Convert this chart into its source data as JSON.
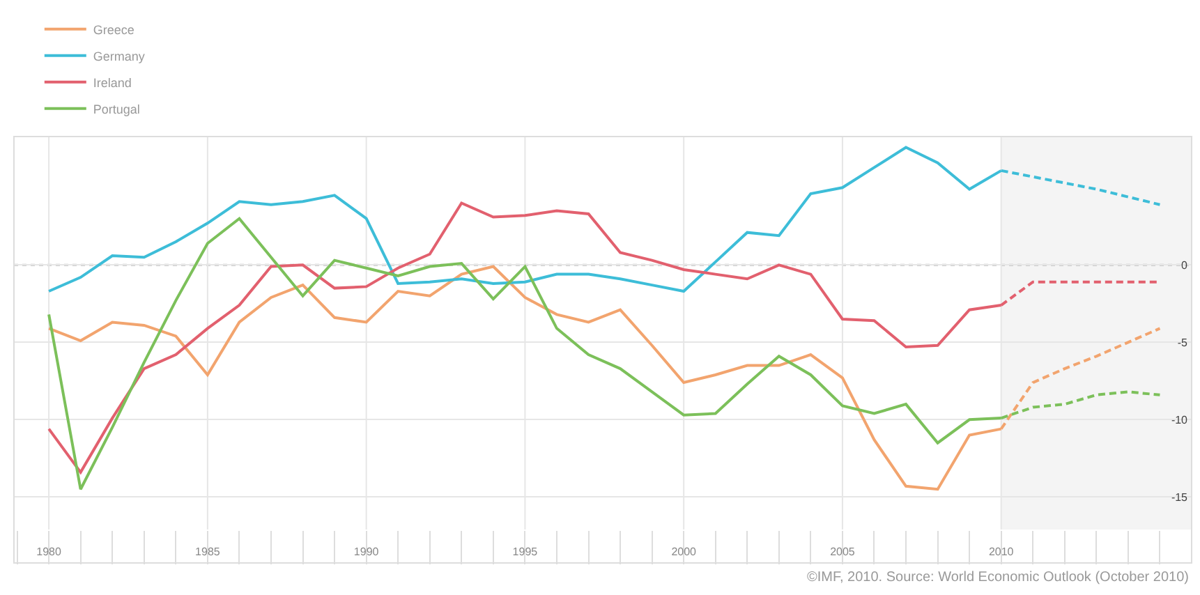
{
  "chart_data": {
    "type": "line",
    "x": [
      1980,
      1981,
      1982,
      1983,
      1984,
      1985,
      1986,
      1987,
      1988,
      1989,
      1990,
      1991,
      1992,
      1993,
      1994,
      1995,
      1996,
      1997,
      1998,
      1999,
      2000,
      2001,
      2002,
      2003,
      2004,
      2005,
      2006,
      2007,
      2008,
      2009,
      2010
    ],
    "series": [
      {
        "name": "Greece",
        "color": "#f2a46e",
        "line_style": "solid",
        "values": [
          -4.1,
          -4.9,
          -3.7,
          -3.9,
          -4.6,
          -7.1,
          -3.7,
          -2.1,
          -1.3,
          -3.4,
          -3.7,
          -1.7,
          -2.0,
          -0.6,
          -0.1,
          -2.1,
          -3.2,
          -3.7,
          -2.9,
          -5.2,
          -7.6,
          -7.1,
          -6.5,
          -6.5,
          -5.8,
          -7.3,
          -11.3,
          -14.3,
          -14.5,
          -11.0,
          -10.6
        ]
      },
      {
        "name": "Germany",
        "color": "#3dbdd8",
        "line_style": "solid",
        "values": [
          -1.7,
          -0.8,
          0.6,
          0.5,
          1.5,
          2.7,
          4.1,
          3.9,
          4.1,
          4.5,
          3.0,
          -1.2,
          -1.1,
          -0.9,
          -1.2,
          -1.1,
          -0.6,
          -0.6,
          -0.9,
          -1.3,
          -1.7,
          0.2,
          2.1,
          1.9,
          4.6,
          5.0,
          6.3,
          7.6,
          6.6,
          4.9,
          6.1
        ]
      },
      {
        "name": "Ireland",
        "color": "#e2606e",
        "line_style": "solid",
        "values": [
          -10.6,
          -13.4,
          -9.9,
          -6.7,
          -5.8,
          -4.1,
          -2.6,
          -0.1,
          0.0,
          -1.5,
          -1.4,
          -0.2,
          0.7,
          4.0,
          3.1,
          3.2,
          3.5,
          3.3,
          0.8,
          0.3,
          -0.3,
          -0.6,
          -0.9,
          0.0,
          -0.6,
          -3.5,
          -3.6,
          -5.3,
          -5.2,
          -2.9,
          -2.6
        ]
      },
      {
        "name": "Portugal",
        "color": "#7cc05a",
        "line_style": "solid",
        "values": [
          -3.2,
          -14.5,
          -10.5,
          -6.3,
          -2.3,
          1.4,
          3.0,
          0.5,
          -2.0,
          0.3,
          -0.2,
          -0.7,
          -0.1,
          0.1,
          -2.2,
          -0.1,
          -4.1,
          -5.8,
          -6.7,
          -8.2,
          -9.7,
          -9.6,
          -7.7,
          -5.9,
          -7.1,
          -9.1,
          -9.6,
          -9.0,
          -11.5,
          -10.0,
          -9.9
        ]
      },
      {
        "color": "#f2a46e",
        "line_style": "dashed",
        "x": [
          2010,
          2011,
          2012,
          2013,
          2014,
          2015
        ],
        "values": [
          -10.6,
          -7.6,
          -6.7,
          -5.9,
          -5.0,
          -4.1
        ]
      },
      {
        "color": "#3dbdd8",
        "line_style": "dashed",
        "x": [
          2010,
          2011,
          2012,
          2013,
          2014,
          2015
        ],
        "values": [
          6.1,
          5.7,
          5.3,
          4.9,
          4.4,
          3.9
        ]
      },
      {
        "color": "#e2606e",
        "line_style": "dashed",
        "x": [
          2010,
          2011,
          2012,
          2013,
          2014,
          2015
        ],
        "values": [
          -2.6,
          -1.1,
          -1.1,
          -1.1,
          -1.1,
          -1.1
        ]
      },
      {
        "color": "#7cc05a",
        "line_style": "dashed",
        "x": [
          2010,
          2011,
          2012,
          2013,
          2014,
          2015
        ],
        "values": [
          -9.9,
          -9.2,
          -9.0,
          -8.4,
          -8.2,
          -8.4
        ]
      }
    ],
    "xlim": [
      1978.9,
      2016
    ],
    "xticks": [
      1980,
      1985,
      1990,
      1995,
      2000,
      2005,
      2010
    ],
    "ylim": [
      -17.1,
      8.3
    ],
    "yticks": [
      0,
      -5,
      -10,
      -15
    ],
    "grid": true,
    "ref_lines": [
      {
        "axis": "y",
        "value": 0,
        "color": "#bbbbbb",
        "line_style": "dotted"
      }
    ],
    "bands": [
      {
        "axis": "x",
        "from": 2010,
        "to": 2016,
        "color": "#f4f4f4"
      }
    ],
    "legend": "top left",
    "marker": "none",
    "annotations": [
      "©IMF, 2010. Source: World Economic Outlook (October 2010)"
    ]
  }
}
